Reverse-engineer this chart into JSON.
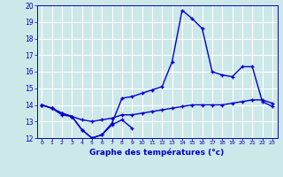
{
  "title": "Graphe des températures (°c)",
  "line1_x": [
    0,
    1,
    2,
    3,
    4,
    5,
    6,
    7,
    8,
    9
  ],
  "line1_y": [
    14.0,
    13.8,
    13.4,
    13.3,
    12.5,
    12.0,
    12.2,
    12.8,
    13.1,
    12.6
  ],
  "line2_x": [
    0,
    1,
    2,
    3,
    4,
    5,
    6,
    7,
    8,
    9,
    10,
    11,
    12,
    13,
    14,
    15,
    16,
    17,
    18,
    19,
    20,
    21,
    22,
    23
  ],
  "line2_y": [
    14.0,
    13.8,
    13.5,
    13.3,
    13.1,
    13.0,
    13.1,
    13.2,
    13.4,
    13.4,
    13.5,
    13.6,
    13.7,
    13.8,
    13.9,
    14.0,
    14.0,
    14.0,
    14.0,
    14.1,
    14.2,
    14.3,
    14.3,
    14.1
  ],
  "line3_x": [
    0,
    1,
    2,
    3,
    4,
    5,
    6,
    7,
    8,
    9,
    10,
    11,
    12,
    13,
    14,
    15,
    16,
    17,
    18,
    19,
    20,
    21,
    22,
    23
  ],
  "line3_y": [
    14.0,
    13.8,
    13.5,
    13.3,
    12.5,
    12.0,
    12.2,
    12.9,
    14.4,
    14.5,
    14.7,
    14.9,
    15.1,
    16.6,
    19.7,
    19.2,
    18.6,
    16.0,
    15.8,
    15.7,
    16.3,
    16.3,
    14.2,
    13.9
  ],
  "ylim": [
    12,
    20
  ],
  "yticks": [
    12,
    13,
    14,
    15,
    16,
    17,
    18,
    19,
    20
  ],
  "line_color": "#0000cc",
  "bg_color": "#cce8e8",
  "grid_color": "#ffffff",
  "label_color": "#0000cc",
  "figwidth": 3.2,
  "figheight": 2.0,
  "dpi": 100
}
